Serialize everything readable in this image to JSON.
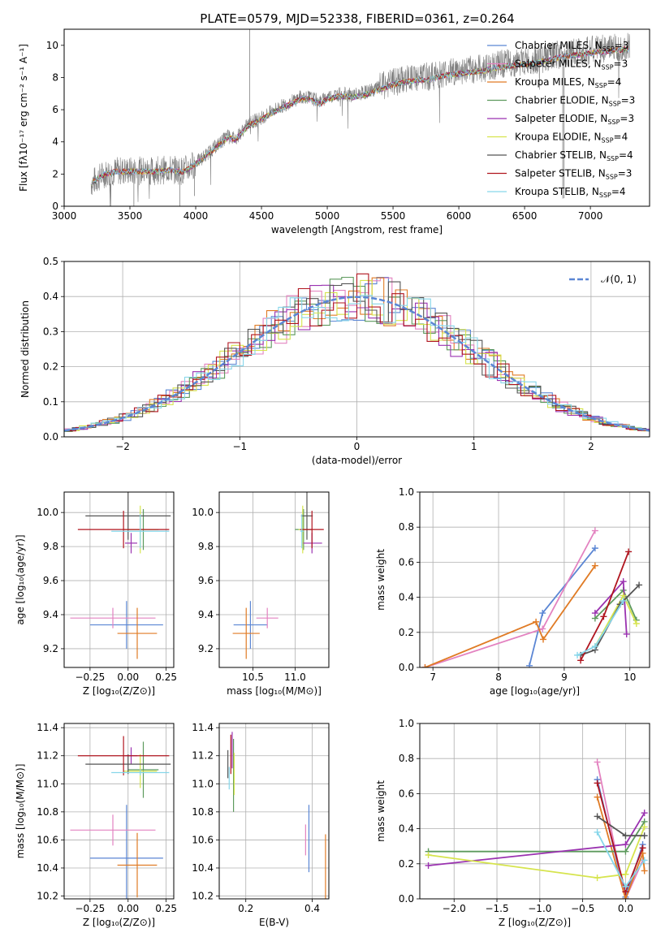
{
  "colors": {
    "cm": "#5b86d4",
    "sm": "#e382c0",
    "km": "#e07b25",
    "ce": "#5d9a5d",
    "se": "#9a32b0",
    "ke": "#d6e44d",
    "cs": "#555555",
    "ss": "#b0151f",
    "ks": "#86d6ea",
    "grid": "#b0b0b0",
    "data": "#808080",
    "normal": "#5b86d4"
  },
  "chart_data": [
    {
      "id": "spectrum",
      "type": "line",
      "title": "PLATE=0579, MJD=52338, FIBERID=0361, z=0.264",
      "xlabel": "wavelength [Angstrom, rest frame]",
      "ylabel": "Flux [fλ10⁻¹⁷ erg cm⁻² s⁻¹ A⁻¹]",
      "xlim": [
        3000,
        7450
      ],
      "ylim": [
        0,
        11
      ],
      "xticks": [
        "3000",
        "3500",
        "4000",
        "4500",
        "5000",
        "5500",
        "6000",
        "6500",
        "7000"
      ],
      "yticks": [
        "0",
        "2",
        "4",
        "6",
        "8",
        "10"
      ],
      "legend_position": "top-right",
      "legend": [
        {
          "key": "cm",
          "label": "Chabrier MILES, N",
          "sub": "SSP",
          "suffix": "=3"
        },
        {
          "key": "sm",
          "label": "Salpeter MILES, N",
          "sub": "SSP",
          "suffix": "=3"
        },
        {
          "key": "km",
          "label": "Kroupa MILES, N",
          "sub": "SSP",
          "suffix": "=4"
        },
        {
          "key": "ce",
          "label": "Chabrier ELODIE, N",
          "sub": "SSP",
          "suffix": "=3"
        },
        {
          "key": "se",
          "label": "Salpeter ELODIE, N",
          "sub": "SSP",
          "suffix": "=3"
        },
        {
          "key": "ke",
          "label": "Kroupa ELODIE, N",
          "sub": "SSP",
          "suffix": "=4"
        },
        {
          "key": "cs",
          "label": "Chabrier STELIB, N",
          "sub": "SSP",
          "suffix": "=4"
        },
        {
          "key": "ss",
          "label": "Salpeter STELIB, N",
          "sub": "SSP",
          "suffix": "=3"
        },
        {
          "key": "ks",
          "label": "Kroupa STELIB, N",
          "sub": "SSP",
          "suffix": "=4"
        }
      ],
      "continuum": [
        [
          3200,
          1.4
        ],
        [
          3300,
          2.0
        ],
        [
          3400,
          2.2
        ],
        [
          3500,
          2.2
        ],
        [
          3600,
          2.2
        ],
        [
          3700,
          2.2
        ],
        [
          3800,
          2.3
        ],
        [
          3900,
          2.2
        ],
        [
          3950,
          2.4
        ],
        [
          4050,
          3.0
        ],
        [
          4150,
          3.7
        ],
        [
          4250,
          4.4
        ],
        [
          4300,
          4.2
        ],
        [
          4400,
          5.1
        ],
        [
          4500,
          5.5
        ],
        [
          4600,
          6.0
        ],
        [
          4700,
          6.4
        ],
        [
          4800,
          6.8
        ],
        [
          4850,
          6.8
        ],
        [
          4950,
          6.5
        ],
        [
          5000,
          6.8
        ],
        [
          5100,
          7.0
        ],
        [
          5200,
          6.9
        ],
        [
          5300,
          7.1
        ],
        [
          5400,
          7.4
        ],
        [
          5500,
          7.7
        ],
        [
          5600,
          7.9
        ],
        [
          5700,
          8.0
        ],
        [
          5800,
          8.1
        ],
        [
          5900,
          8.3
        ],
        [
          6000,
          8.4
        ],
        [
          6100,
          8.5
        ],
        [
          6200,
          8.6
        ],
        [
          6300,
          8.8
        ],
        [
          6400,
          8.9
        ],
        [
          6500,
          9.0
        ],
        [
          6600,
          9.1
        ],
        [
          6700,
          9.3
        ],
        [
          6800,
          9.5
        ],
        [
          6900,
          9.6
        ],
        [
          7000,
          9.7
        ],
        [
          7100,
          9.8
        ],
        [
          7200,
          9.9
        ],
        [
          7300,
          10.0
        ]
      ]
    },
    {
      "id": "residuals",
      "type": "bar",
      "xlabel": "(data-model)/error",
      "ylabel": "Normed distribution",
      "xlim": [
        -2.5,
        2.5
      ],
      "ylim": [
        0,
        0.5
      ],
      "xticks": [
        "−2",
        "−1",
        "0",
        "1",
        "2"
      ],
      "yticks": [
        "0.0",
        "0.1",
        "0.2",
        "0.3",
        "0.4",
        "0.5"
      ],
      "legend_position": "top-right",
      "normal_label": "𝒩(0, 1)",
      "bin_width": 0.1
    },
    {
      "id": "age_vs_Z",
      "type": "scatter",
      "xlabel": "Z [log₁₀(Z/Z⊙)]",
      "ylabel": "age  [log₁₀(age/yr)]",
      "xlim": [
        -0.42,
        0.3
      ],
      "ylim": [
        9.09,
        10.12
      ],
      "xticks": [
        {
          "v": -0.25,
          "t": "−0.25"
        },
        {
          "v": 0.0,
          "t": "0.00"
        },
        {
          "v": 0.25,
          "t": "0.25"
        }
      ],
      "yticks": [
        {
          "v": 9.2,
          "t": "9.2"
        },
        {
          "v": 9.4,
          "t": "9.4"
        },
        {
          "v": 9.6,
          "t": "9.6"
        },
        {
          "v": 9.8,
          "t": "9.8"
        },
        {
          "v": 10.0,
          "t": "10.0"
        }
      ],
      "errorbars": [
        {
          "key": "cm",
          "x": -0.01,
          "xerr": 0.24,
          "y": 9.34,
          "yerr": 0.14
        },
        {
          "key": "sm",
          "x": -0.1,
          "xerr": 0.28,
          "y": 9.38,
          "yerr": 0.06
        },
        {
          "key": "km",
          "x": 0.06,
          "xerr": 0.13,
          "y": 9.29,
          "yerr": 0.15
        },
        {
          "key": "ce",
          "x": 0.1,
          "xerr": 0.1,
          "y": 9.9,
          "yerr": 0.12
        },
        {
          "key": "se",
          "x": 0.02,
          "xerr": 0.04,
          "y": 9.82,
          "yerr": 0.06
        },
        {
          "key": "ke",
          "x": 0.08,
          "xerr": 0.11,
          "y": 9.9,
          "yerr": 0.14
        },
        {
          "key": "cs",
          "x": 0.0,
          "xerr": 0.28,
          "y": 9.98,
          "yerr": 0.14
        },
        {
          "key": "ss",
          "x": -0.03,
          "xerr": 0.3,
          "y": 9.9,
          "yerr": 0.11
        },
        {
          "key": "ks",
          "x": 0.08,
          "xerr": 0.19,
          "y": 9.89,
          "yerr": 0.1
        }
      ]
    },
    {
      "id": "age_vs_mass",
      "type": "scatter",
      "xlabel": "mass [log₁₀(M/M⊙)]",
      "ylabel": "",
      "xlim": [
        10.1,
        11.4
      ],
      "ylim": [
        9.09,
        10.12
      ],
      "xticks": [
        {
          "v": 10.5,
          "t": "10.5"
        },
        {
          "v": 11.0,
          "t": "11.0"
        }
      ],
      "yticks": [
        {
          "v": 9.2,
          "t": "9.2"
        },
        {
          "v": 9.4,
          "t": "9.4"
        },
        {
          "v": 9.6,
          "t": "9.6"
        },
        {
          "v": 9.8,
          "t": "9.8"
        },
        {
          "v": 10.0,
          "t": "10.0"
        }
      ],
      "errorbars": [
        {
          "key": "cm",
          "x": 10.47,
          "xerr": 0.2,
          "y": 9.34,
          "yerr": 0.14
        },
        {
          "key": "sm",
          "x": 10.67,
          "xerr": 0.13,
          "y": 9.38,
          "yerr": 0.06
        },
        {
          "key": "km",
          "x": 10.42,
          "xerr": 0.16,
          "y": 9.29,
          "yerr": 0.15
        },
        {
          "key": "ce",
          "x": 11.1,
          "xerr": 0.1,
          "y": 9.9,
          "yerr": 0.12
        },
        {
          "key": "se",
          "x": 11.2,
          "xerr": 0.12,
          "y": 9.82,
          "yerr": 0.06
        },
        {
          "key": "ke",
          "x": 11.09,
          "xerr": 0.05,
          "y": 9.9,
          "yerr": 0.14
        },
        {
          "key": "cs",
          "x": 11.14,
          "xerr": 0.07,
          "y": 9.98,
          "yerr": 0.14
        },
        {
          "key": "ss",
          "x": 11.2,
          "xerr": 0.14,
          "y": 9.9,
          "yerr": 0.11
        },
        {
          "key": "ks",
          "x": 11.08,
          "xerr": 0.02,
          "y": 9.89,
          "yerr": 0.1
        }
      ]
    },
    {
      "id": "weight_vs_age",
      "type": "line",
      "xlabel": "age  [log₁₀(age/yr)]",
      "ylabel": "mass weight",
      "xlim": [
        6.8,
        10.3
      ],
      "ylim": [
        0.0,
        1.0
      ],
      "xticks": [
        {
          "v": 7,
          "t": "7"
        },
        {
          "v": 8,
          "t": "8"
        },
        {
          "v": 9,
          "t": "9"
        },
        {
          "v": 10,
          "t": "10"
        }
      ],
      "yticks": [
        {
          "v": 0,
          "t": "0.0"
        },
        {
          "v": 0.2,
          "t": "0.2"
        },
        {
          "v": 0.4,
          "t": "0.4"
        },
        {
          "v": 0.6,
          "t": "0.6"
        },
        {
          "v": 0.8,
          "t": "0.8"
        },
        {
          "v": 1.0,
          "t": "1.0"
        }
      ],
      "series": [
        {
          "key": "cm",
          "x": [
            8.47,
            8.67,
            9.47
          ],
          "y": [
            0.01,
            0.31,
            0.68
          ]
        },
        {
          "key": "sm",
          "x": [
            6.88,
            8.67,
            9.47
          ],
          "y": [
            0.0,
            0.22,
            0.78
          ]
        },
        {
          "key": "km",
          "x": [
            6.88,
            8.57,
            8.68,
            9.47
          ],
          "y": [
            0.0,
            0.26,
            0.16,
            0.58
          ]
        },
        {
          "key": "ce",
          "x": [
            9.47,
            9.9,
            10.1
          ],
          "y": [
            0.28,
            0.44,
            0.27
          ]
        },
        {
          "key": "se",
          "x": [
            9.47,
            9.9,
            9.95
          ],
          "y": [
            0.31,
            0.49,
            0.19
          ]
        },
        {
          "key": "ke",
          "x": [
            9.47,
            9.9,
            10.1
          ],
          "y": [
            0.12,
            0.41,
            0.25
          ]
        },
        {
          "key": "cs",
          "x": [
            9.25,
            9.47,
            9.85,
            10.14
          ],
          "y": [
            0.07,
            0.1,
            0.36,
            0.47
          ]
        },
        {
          "key": "ss",
          "x": [
            9.25,
            9.6,
            9.98
          ],
          "y": [
            0.04,
            0.29,
            0.66
          ]
        },
        {
          "key": "ks",
          "x": [
            9.2,
            9.47,
            9.9
          ],
          "y": [
            0.07,
            0.12,
            0.38
          ]
        }
      ]
    },
    {
      "id": "mass_vs_Z",
      "type": "scatter",
      "xlabel": "Z [log₁₀(Z/Z⊙)]",
      "ylabel": "mass [log₁₀(M/M⊙)]",
      "xlim": [
        -0.42,
        0.3
      ],
      "ylim": [
        10.18,
        11.43
      ],
      "xticks": [
        {
          "v": -0.25,
          "t": "−0.25"
        },
        {
          "v": 0.0,
          "t": "0.00"
        },
        {
          "v": 0.25,
          "t": "0.25"
        }
      ],
      "yticks": [
        {
          "v": 10.2,
          "t": "10.2"
        },
        {
          "v": 10.4,
          "t": "10.4"
        },
        {
          "v": 10.6,
          "t": "10.6"
        },
        {
          "v": 10.8,
          "t": "10.8"
        },
        {
          "v": 11.0,
          "t": "11.0"
        },
        {
          "v": 11.2,
          "t": "11.2"
        },
        {
          "v": 11.4,
          "t": "11.4"
        }
      ],
      "errorbars": [
        {
          "key": "cm",
          "x": -0.01,
          "xerr": 0.24,
          "y": 10.47,
          "yerr": 0.38
        },
        {
          "key": "sm",
          "x": -0.1,
          "xerr": 0.28,
          "y": 10.67,
          "yerr": 0.11
        },
        {
          "key": "km",
          "x": 0.06,
          "xerr": 0.13,
          "y": 10.42,
          "yerr": 0.23
        },
        {
          "key": "ce",
          "x": 0.1,
          "xerr": 0.1,
          "y": 11.1,
          "yerr": 0.2
        },
        {
          "key": "se",
          "x": 0.02,
          "xerr": 0.04,
          "y": 11.2,
          "yerr": 0.06
        },
        {
          "key": "ke",
          "x": 0.08,
          "xerr": 0.11,
          "y": 11.09,
          "yerr": 0.12
        },
        {
          "key": "cs",
          "x": 0.0,
          "xerr": 0.28,
          "y": 11.14,
          "yerr": 0.07
        },
        {
          "key": "ss",
          "x": -0.03,
          "xerr": 0.3,
          "y": 11.2,
          "yerr": 0.14
        },
        {
          "key": "ks",
          "x": 0.08,
          "xerr": 0.19,
          "y": 11.08,
          "yerr": 0.02
        }
      ]
    },
    {
      "id": "mass_vs_ebv",
      "type": "scatter",
      "xlabel": "E(B-V)",
      "ylabel": "",
      "xlim": [
        0.12,
        0.45
      ],
      "ylim": [
        10.18,
        11.43
      ],
      "xticks": [
        {
          "v": 0.2,
          "t": "0.2"
        },
        {
          "v": 0.4,
          "t": "0.4"
        }
      ],
      "yticks": [
        {
          "v": 10.2,
          "t": "10.2"
        },
        {
          "v": 10.4,
          "t": "10.4"
        },
        {
          "v": 10.6,
          "t": "10.6"
        },
        {
          "v": 10.8,
          "t": "10.8"
        },
        {
          "v": 11.0,
          "t": "11.0"
        },
        {
          "v": 11.2,
          "t": "11.2"
        },
        {
          "v": 11.4,
          "t": "11.4"
        }
      ],
      "errorbars": [
        {
          "key": "cm",
          "x": 0.39,
          "xerr": 0,
          "y": 10.61,
          "yerr": 0.24
        },
        {
          "key": "sm",
          "x": 0.38,
          "xerr": 0,
          "y": 10.6,
          "yerr": 0.11
        },
        {
          "key": "km",
          "x": 0.44,
          "xerr": 0,
          "y": 10.41,
          "yerr": 0.23
        },
        {
          "key": "ce",
          "x": 0.163,
          "xerr": 0,
          "y": 11.06,
          "yerr": 0.26
        },
        {
          "key": "se",
          "x": 0.159,
          "xerr": 0,
          "y": 11.24,
          "yerr": 0.13
        },
        {
          "key": "ke",
          "x": 0.165,
          "xerr": 0,
          "y": 11.07,
          "yerr": 0.15
        },
        {
          "key": "cs",
          "x": 0.146,
          "xerr": 0,
          "y": 11.14,
          "yerr": 0.1
        },
        {
          "key": "ss",
          "x": 0.155,
          "xerr": 0,
          "y": 11.21,
          "yerr": 0.14
        },
        {
          "key": "ks",
          "x": 0.15,
          "xerr": 0,
          "y": 11.04,
          "yerr": 0.08
        }
      ]
    },
    {
      "id": "weight_vs_Z",
      "type": "line",
      "xlabel": "Z [log₁₀(Z/Z⊙)]",
      "ylabel": "mass weight",
      "xlim": [
        -2.4,
        0.28
      ],
      "ylim": [
        0.0,
        1.0
      ],
      "xticks": [
        {
          "v": -2.0,
          "t": "−2.0"
        },
        {
          "v": -1.5,
          "t": "−1.5"
        },
        {
          "v": -1.0,
          "t": "−1.0"
        },
        {
          "v": -0.5,
          "t": "−0.5"
        },
        {
          "v": 0.0,
          "t": "0.0"
        }
      ],
      "yticks": [
        {
          "v": 0,
          "t": "0.0"
        },
        {
          "v": 0.2,
          "t": "0.2"
        },
        {
          "v": 0.4,
          "t": "0.4"
        },
        {
          "v": 0.6,
          "t": "0.6"
        },
        {
          "v": 0.8,
          "t": "0.8"
        },
        {
          "v": 1.0,
          "t": "1.0"
        }
      ],
      "series": [
        {
          "key": "cm",
          "x": [
            -0.33,
            0.0,
            0.2
          ],
          "y": [
            0.68,
            0.01,
            0.31
          ]
        },
        {
          "key": "sm",
          "x": [
            -0.33,
            0.0,
            0.2
          ],
          "y": [
            0.78,
            0.0,
            0.22
          ]
        },
        {
          "key": "km",
          "x": [
            -0.33,
            0.0,
            0.2,
            0.22
          ],
          "y": [
            0.58,
            0.0,
            0.26,
            0.16
          ]
        },
        {
          "key": "ce",
          "x": [
            -2.3,
            0.0,
            0.22
          ],
          "y": [
            0.27,
            0.27,
            0.44
          ]
        },
        {
          "key": "se",
          "x": [
            -2.3,
            0.0,
            0.22
          ],
          "y": [
            0.19,
            0.31,
            0.49
          ]
        },
        {
          "key": "ke",
          "x": [
            -2.3,
            -0.33,
            0.0,
            0.22
          ],
          "y": [
            0.25,
            0.12,
            0.14,
            0.41
          ]
        },
        {
          "key": "cs",
          "x": [
            -0.33,
            0.0,
            0.22
          ],
          "y": [
            0.47,
            0.36,
            0.36
          ]
        },
        {
          "key": "ss",
          "x": [
            -0.33,
            0.0,
            0.2
          ],
          "y": [
            0.66,
            0.04,
            0.29
          ]
        },
        {
          "key": "ks",
          "x": [
            -0.33,
            0.0,
            0.22
          ],
          "y": [
            0.38,
            0.07,
            0.22
          ]
        }
      ]
    }
  ]
}
